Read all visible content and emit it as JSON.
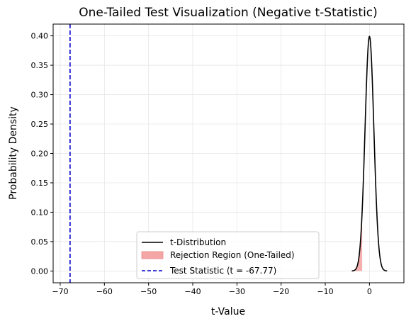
{
  "chart_data": {
    "type": "line",
    "title": "One-Tailed Test Visualization (Negative t-Statistic)",
    "xlabel": "t-Value",
    "ylabel": "Probability Density",
    "xlim": [
      -71.6,
      7.8
    ],
    "ylim": [
      -0.02,
      0.42
    ],
    "xticks": [
      -70,
      -60,
      -50,
      -40,
      -30,
      -20,
      -10,
      0
    ],
    "xtick_labels": [
      "−70",
      "−60",
      "−50",
      "−40",
      "−30",
      "−20",
      "−10",
      "0"
    ],
    "yticks": [
      0.0,
      0.05,
      0.1,
      0.15,
      0.2,
      0.25,
      0.3,
      0.35,
      0.4
    ],
    "ytick_labels": [
      "0.00",
      "0.05",
      "0.10",
      "0.15",
      "0.20",
      "0.25",
      "0.30",
      "0.35",
      "0.40"
    ],
    "grid": true,
    "legend_position": "lower-center",
    "series": [
      {
        "name": "t-Distribution",
        "kind": "line",
        "color": "#000000",
        "x_range": [
          -4.0,
          4.0
        ],
        "peak": 0.399,
        "x": [
          -4.0,
          -3.5,
          -3.0,
          -2.5,
          -2.0,
          -1.5,
          -1.0,
          -0.5,
          0.0,
          0.5,
          1.0,
          1.5,
          2.0,
          2.5,
          3.0,
          3.5,
          4.0
        ],
        "y": [
          0.0001,
          0.0009,
          0.0044,
          0.0175,
          0.054,
          0.1295,
          0.242,
          0.352,
          0.399,
          0.352,
          0.242,
          0.1295,
          0.054,
          0.0175,
          0.0044,
          0.0009,
          0.0001
        ]
      },
      {
        "name": "Rejection Region (One-Tailed)",
        "kind": "fill",
        "color": "#f4a6a6",
        "x_range": [
          -4.0,
          -1.65
        ]
      },
      {
        "name": "Test Statistic (t = -67.77)",
        "kind": "vline",
        "color": "#0000cc",
        "x": -67.77
      }
    ]
  }
}
